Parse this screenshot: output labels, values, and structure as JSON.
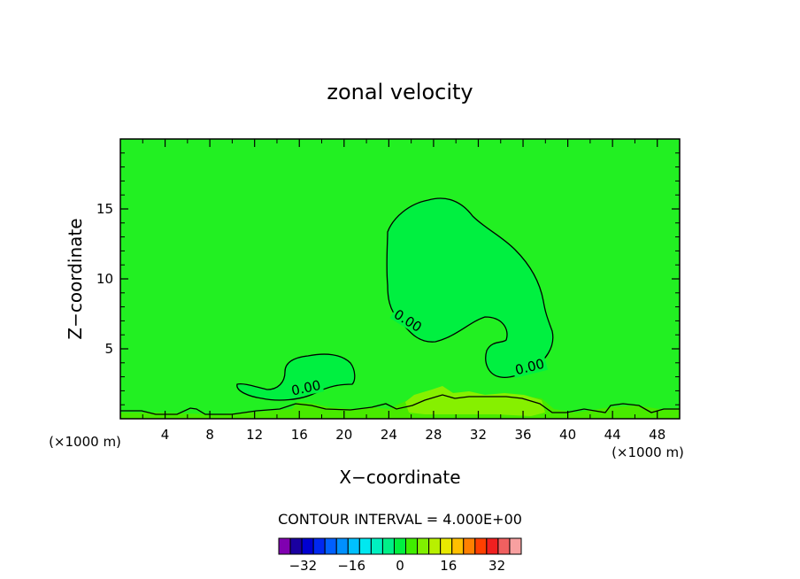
{
  "chart_data": {
    "type": "contour",
    "title": "zonal velocity",
    "xlabel": "X−coordinate",
    "ylabel": "Z−coordinate",
    "xlim": [
      0,
      50
    ],
    "ylim": [
      0,
      20
    ],
    "x_ticks": [
      4,
      8,
      12,
      16,
      20,
      24,
      28,
      32,
      36,
      40,
      44,
      48
    ],
    "y_ticks": [
      5,
      10,
      15
    ],
    "x_unit": "(×1000 m)",
    "y_unit": "(×1000 m)",
    "contour_interval_text": "CONTOUR INTERVAL = 4.000E+00",
    "contour_labels": [
      {
        "text": "0.00",
        "x": 25.7,
        "y": 7.0
      },
      {
        "text": "0.00",
        "x": 16.6,
        "y": 2.2
      },
      {
        "text": "0.00",
        "x": 36.6,
        "y": 3.7
      }
    ],
    "colorbar": {
      "tick_labels": [
        "−32",
        "−16",
        "0",
        "16",
        "32"
      ],
      "tick_values": [
        -32,
        -16,
        0,
        16,
        32
      ],
      "range": [
        -40,
        40
      ],
      "colors": [
        "#8000b0",
        "#1a00a0",
        "#0000d0",
        "#0028f0",
        "#0060ff",
        "#0090ff",
        "#00c0ff",
        "#00e8f0",
        "#00f0c0",
        "#00f088",
        "#00f040",
        "#40ee00",
        "#80f000",
        "#b8f000",
        "#e8e800",
        "#ffc000",
        "#ff8000",
        "#ff4000",
        "#f02020",
        "#f06060",
        "#f8a0a0"
      ]
    },
    "fill_colors": {
      "background": "#22f022",
      "negative_region": "#00f040",
      "weak_positive": "#48ea00",
      "positive": "#86f000"
    }
  }
}
